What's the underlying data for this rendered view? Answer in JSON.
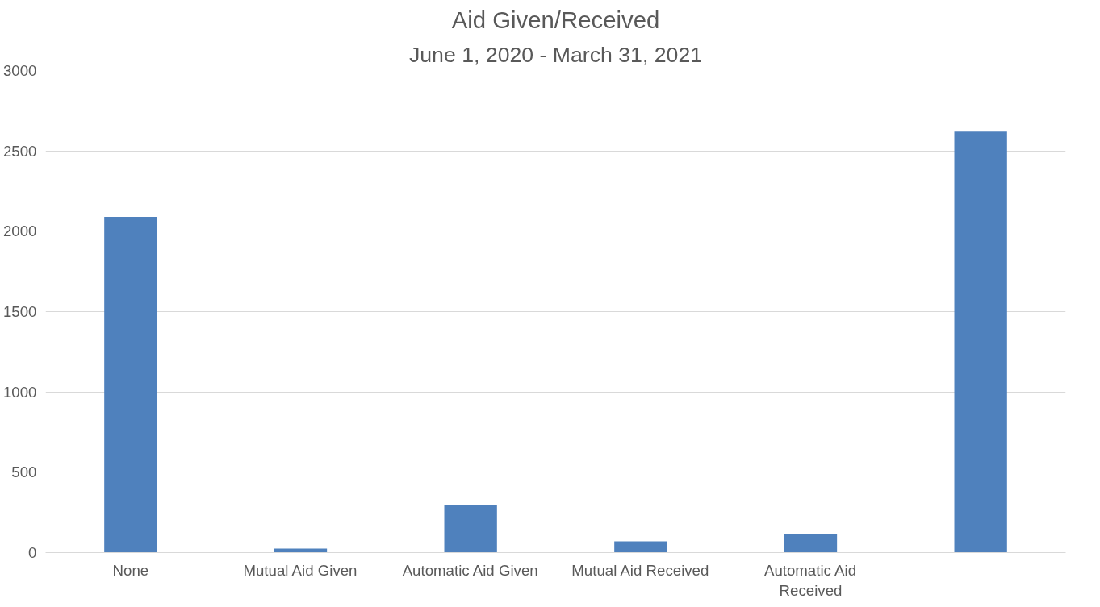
{
  "chart_data": {
    "type": "bar",
    "title": "Aid Given/Received",
    "subtitle": "June 1, 2020 - March 31, 2021",
    "categories": [
      "None",
      "Mutual Aid Given",
      "Automatic Aid Given",
      "Mutual Aid Received",
      "Automatic Aid Received",
      null
    ],
    "values": [
      2090,
      25,
      295,
      70,
      115,
      2620
    ],
    "color": "#4f81bd",
    "ylim": [
      0,
      3000
    ],
    "yticks": [
      0,
      500,
      1000,
      1500,
      2000,
      2500,
      3000
    ],
    "grid": "y"
  }
}
